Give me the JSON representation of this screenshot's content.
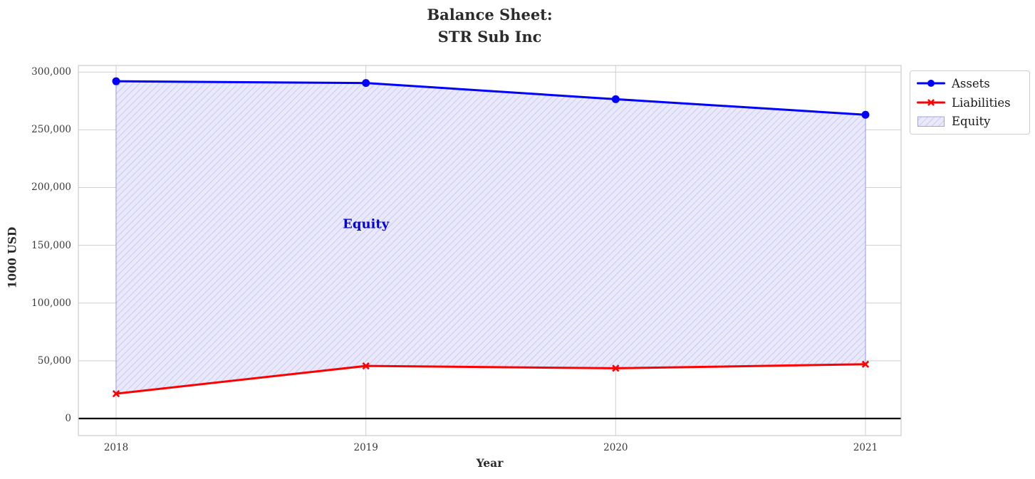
{
  "title": {
    "line1": "Balance Sheet:",
    "line2": "STR Sub Inc"
  },
  "chart_data": {
    "type": "line",
    "title": "Balance Sheet: STR Sub Inc",
    "xlabel": "Year",
    "ylabel": "1000 USD",
    "categories": [
      "2018",
      "2019",
      "2020",
      "2021"
    ],
    "series": [
      {
        "name": "Assets",
        "color": "#0000ff",
        "marker": "circle",
        "line_width": 3,
        "values": [
          292000,
          290500,
          276500,
          263000
        ]
      },
      {
        "name": "Liabilities",
        "color": "#ff0000",
        "marker": "x",
        "line_width": 3,
        "values": [
          21500,
          45500,
          43500,
          47000
        ]
      }
    ],
    "area": {
      "label": "Equity",
      "between": [
        "Liabilities",
        "Assets"
      ],
      "fill_color": "#e9e9fb",
      "hatch_color": "#c3c3ef",
      "edge_color": "rgba(0,0,255,0.25)",
      "hatch_style": "/"
    },
    "annotation": {
      "text": "Equity",
      "x": "2019",
      "y": 168000,
      "color": "#0000dd"
    },
    "y_ticks": [
      {
        "value": 0,
        "label": "0"
      },
      {
        "value": 50000,
        "label": "50,000"
      },
      {
        "value": 100000,
        "label": "100,000"
      },
      {
        "value": 150000,
        "label": "150,000"
      },
      {
        "value": 200000,
        "label": "200,000"
      },
      {
        "value": 250000,
        "label": "250,000"
      },
      {
        "value": 300000,
        "label": "300,000"
      }
    ],
    "ylim": [
      -15000,
      306000
    ],
    "grid": true,
    "grid_color": "#cfcfcf",
    "spine_color": "#cccccc",
    "zero_line_color": "#000000",
    "legend": {
      "position": "outside-top-right",
      "items": [
        {
          "label": "Assets",
          "swatch": "line-circle"
        },
        {
          "label": "Liabilities",
          "swatch": "line-x"
        },
        {
          "label": "Equity",
          "swatch": "hatched-patch"
        }
      ]
    }
  }
}
